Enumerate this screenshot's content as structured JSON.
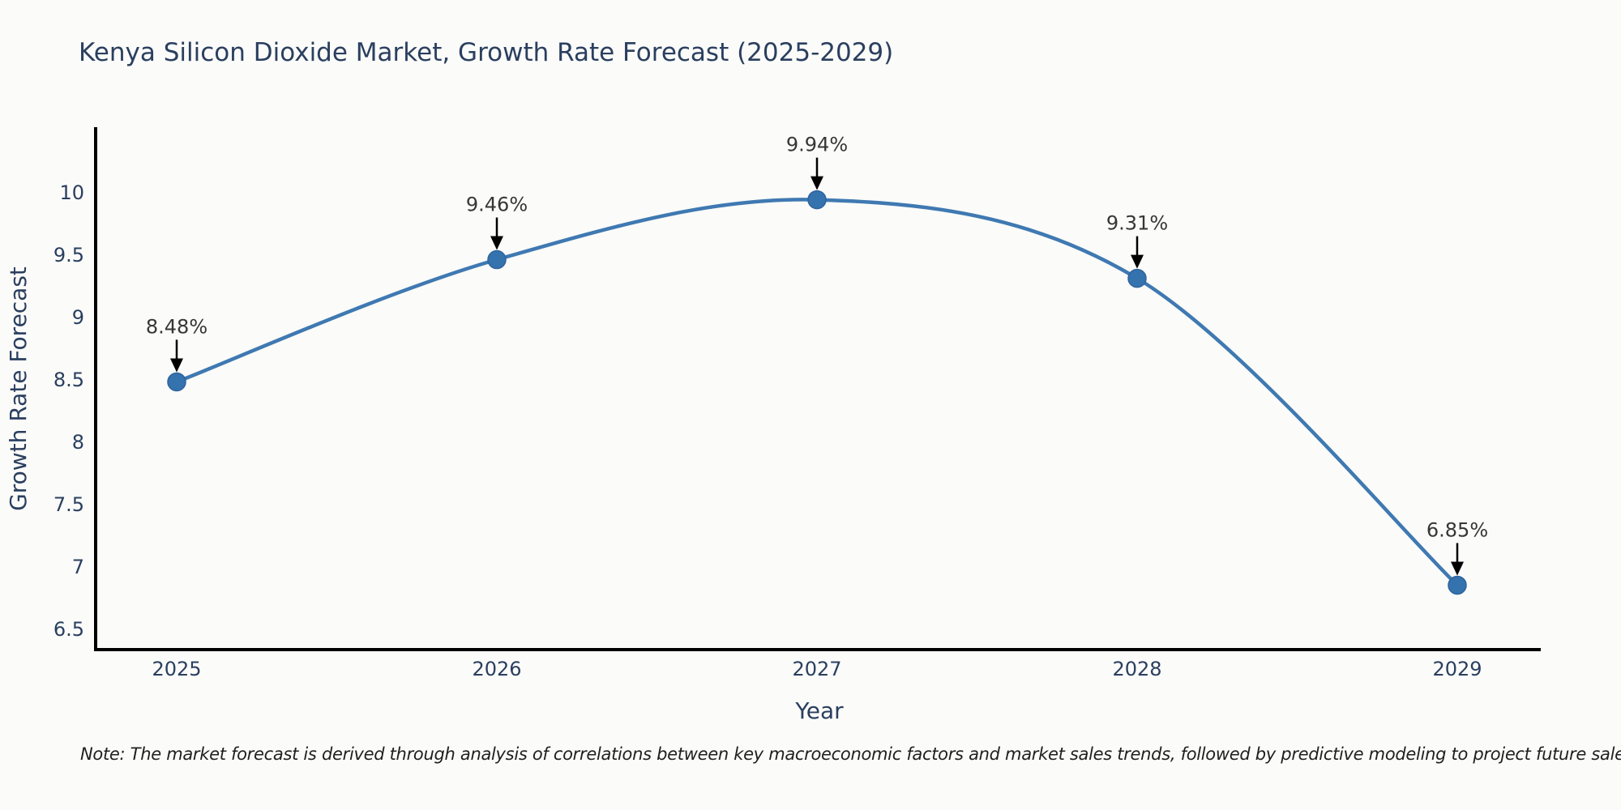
{
  "page": {
    "title": "Kenya Silicon Dioxide Market, Growth Rate Forecast (2025-2029)",
    "note": "Note: The market forecast is derived through analysis of correlations between key macroeconomic factors and market sales trends, followed by predictive modeling to project future sales"
  },
  "chart_data": {
    "type": "line",
    "title": "Kenya Silicon Dioxide Market, Growth Rate Forecast (2025-2029)",
    "xlabel": "Year",
    "ylabel": "Growth Rate Forecast",
    "categories": [
      2025,
      2026,
      2027,
      2028,
      2029
    ],
    "values": [
      8.48,
      9.46,
      9.94,
      9.31,
      6.85
    ],
    "point_labels": [
      "8.48%",
      "9.46%",
      "9.94%",
      "9.31%",
      "6.85%"
    ],
    "yticks": [
      6.5,
      7,
      7.5,
      8,
      8.5,
      9,
      9.5,
      10
    ],
    "xlim": [
      2025,
      2029
    ],
    "ylim": [
      6.34,
      10.5
    ],
    "grid": false,
    "legend": false,
    "line_style": "spline",
    "annotations": "black arrows pointing down from each percentage label to its marker",
    "colors": {
      "line": "#3f79b2",
      "marker": "#3573ae",
      "marker_edge": "#2f649e",
      "arrow": "#000000",
      "axis": "#000000",
      "title_text": "#2a3f5f",
      "annotation_text": "#363636"
    }
  }
}
